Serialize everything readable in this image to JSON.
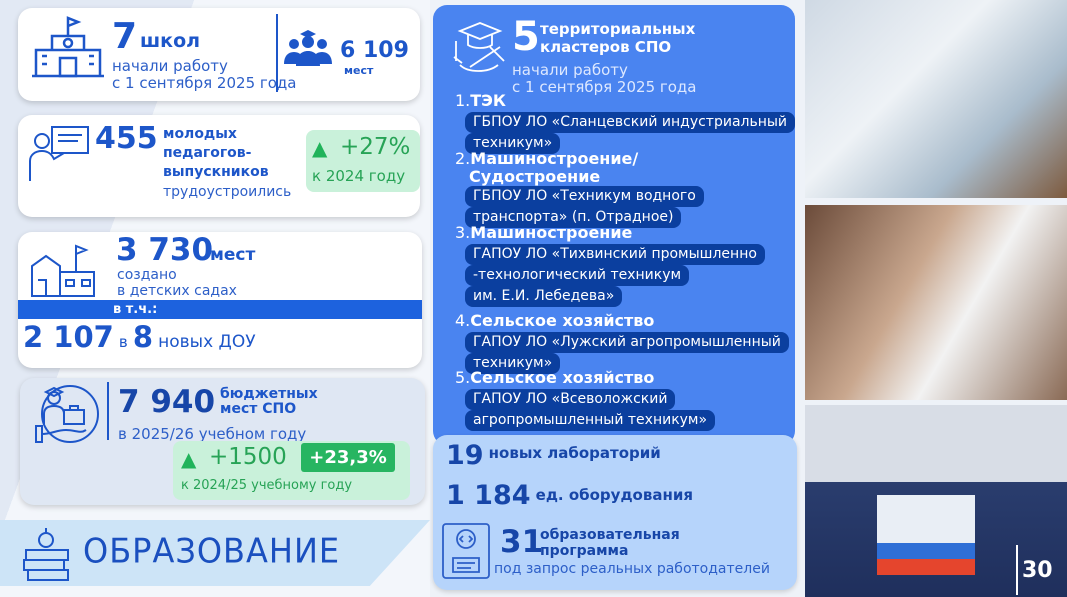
{
  "schools": {
    "count": "7",
    "unit": "школ",
    "line1": "начали работу",
    "line2": "с 1 сентября 2025 года",
    "places": "6 109",
    "places_unit": "мест"
  },
  "teachers": {
    "count": "455",
    "l1": "молодых",
    "l2": "педагогов-",
    "l3": "выпускников",
    "l4": "трудоустроились",
    "growth": "+27%",
    "growth_note": "к 2024 году"
  },
  "kindergartens": {
    "count": "3 730",
    "unit": "мест",
    "l1": "создано",
    "l2": "в детских садах",
    "incl": "в т.ч.:",
    "sub_count": "2 107",
    "sub_in": "в",
    "sub_num": "8",
    "sub_text": "новых ДОУ"
  },
  "spo": {
    "count": "7 940",
    "l1": "бюджетных",
    "l2": "мест СПО",
    "year": "в 2025/26 учебном году",
    "growth": "+1500",
    "growth_pct": "+23,3%",
    "growth_note": "к 2024/25 учебному году"
  },
  "section_title": "ОБРАЗОВАНИЕ",
  "clusters": {
    "count": "5",
    "l1": "территориальных",
    "l2": "кластеров СПО",
    "l3": "начали работу",
    "l4": "с 1 сентября 2025 года",
    "items": [
      {
        "num": "1.",
        "name": "ТЭК",
        "org1": "ГБПОУ ЛО «Сланцевский индустриальный",
        "org2": "техникум»"
      },
      {
        "num": "2.",
        "name": "Машиностроение/",
        "name2": "Судостроение",
        "org1": "ГБПОУ ЛО «Техникум водного",
        "org2": "транспорта» (п. Отрадное)"
      },
      {
        "num": "3.",
        "name": "Машиностроение",
        "org1": "ГАПОУ ЛО «Тихвинский промышленно",
        "org2": "-технологический техникум",
        "org3": "им. Е.И. Лебедева»"
      },
      {
        "num": "4.",
        "name": "Сельское хозяйство",
        "org1": "ГАПОУ ЛО «Лужский агропромышленный",
        "org2": "техникум»"
      },
      {
        "num": "5.",
        "name": "Сельское хозяйство",
        "org1": "ГАПОУ ЛО «Всеволожский",
        "org2": "агропромышленный техникум»"
      }
    ]
  },
  "labs": {
    "count": "19",
    "text": "новых лабораторий",
    "equip_count": "1 184",
    "equip_text": "ед. оборудования",
    "prog_count": "31",
    "prog_l1": "образовательная",
    "prog_l2": "программа",
    "prog_l3": "под запрос реальных работодателей"
  },
  "page_number": "30",
  "colors": {
    "primary": "#1d56c9",
    "panel": "#4a84f0",
    "dark": "#0b3f9f",
    "green": "#20b35a"
  }
}
